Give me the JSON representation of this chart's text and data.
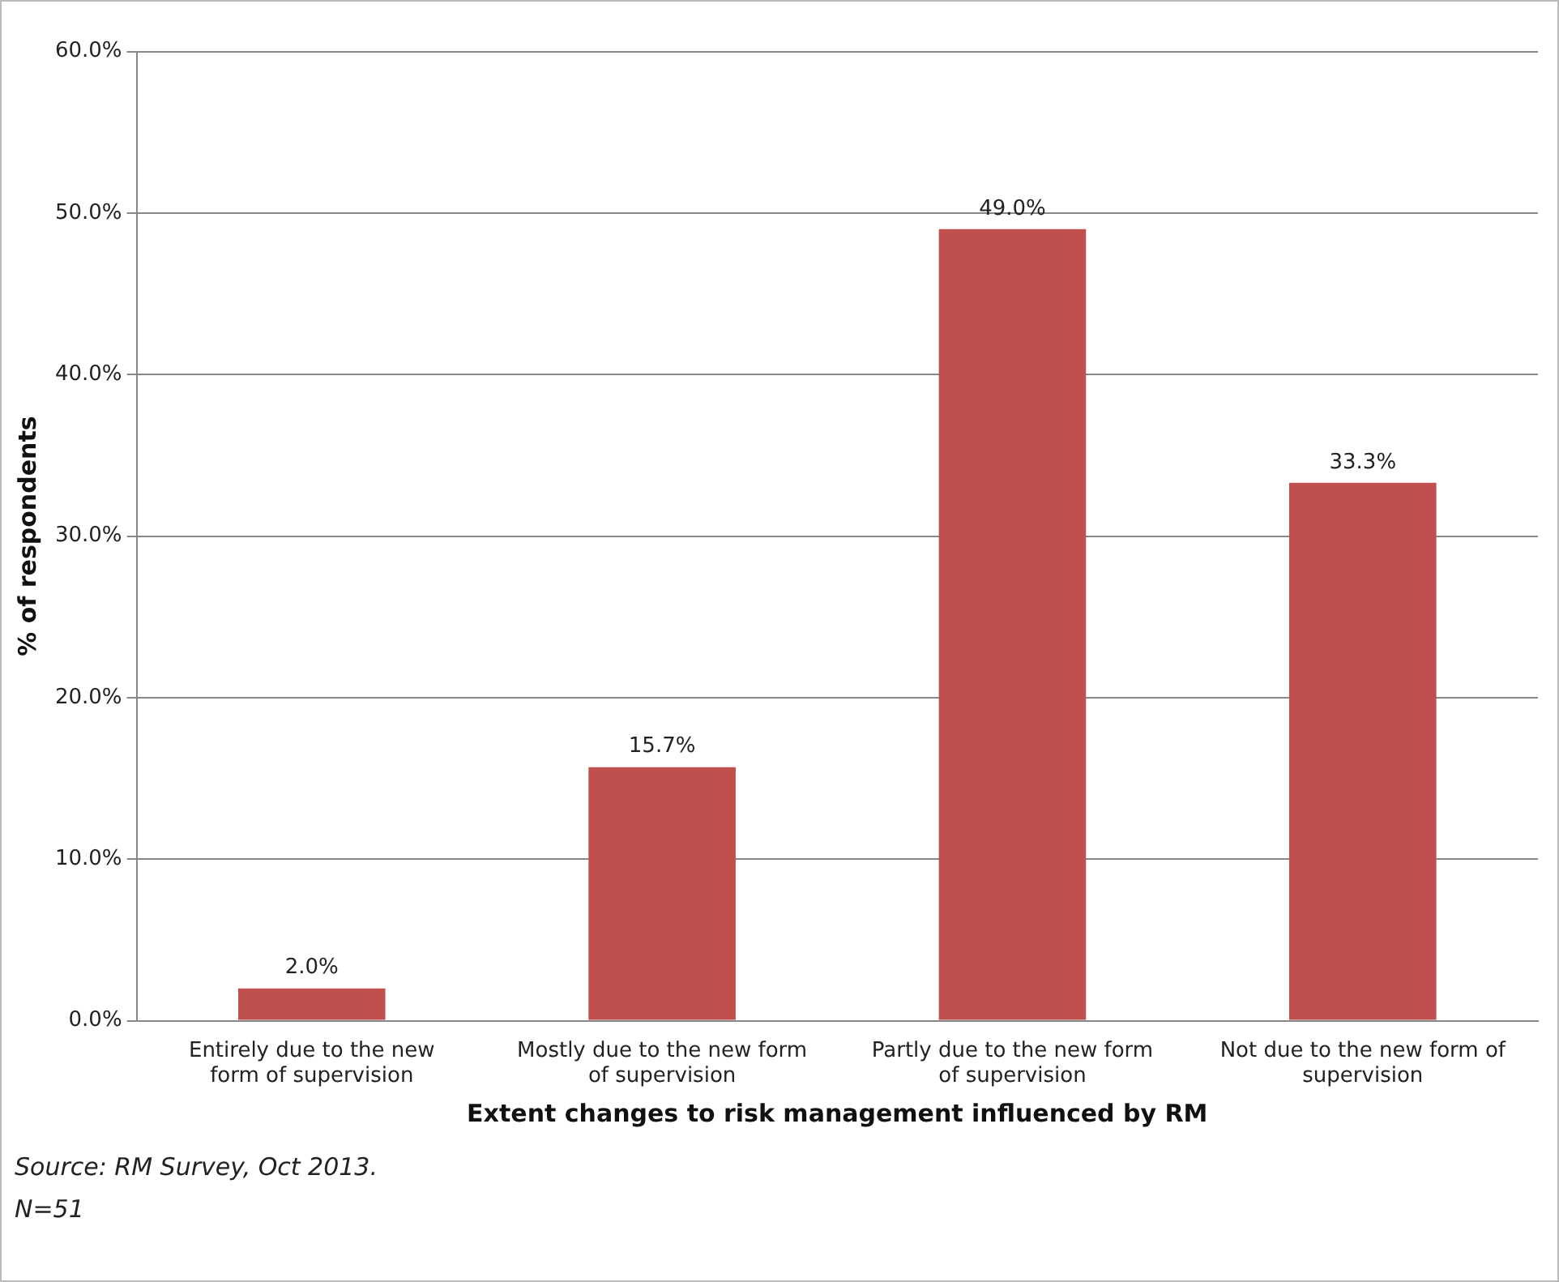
{
  "chart_data": {
    "type": "bar",
    "xlabel": "Extent changes to risk management influenced by RM",
    "ylabel": "% of respondents",
    "categories": [
      "Entirely due to the new form of supervision",
      "Mostly due to the new form of supervision",
      "Partly due to the new form of supervision",
      "Not due to the new form of supervision"
    ],
    "values": [
      2.0,
      15.7,
      49.0,
      33.3
    ],
    "color": "#c0504d",
    "value_labels": [
      "2.0%",
      "15.7%",
      "49.0%",
      "33.3%"
    ],
    "ylim": [
      0,
      60
    ],
    "yticks": [
      {
        "value": 0,
        "label": "0.0%"
      },
      {
        "value": 10,
        "label": "10.0%"
      },
      {
        "value": 20,
        "label": "20.0%"
      },
      {
        "value": 30,
        "label": "30.0%"
      },
      {
        "value": 40,
        "label": "40.0%"
      },
      {
        "value": 50,
        "label": "50.0%"
      },
      {
        "value": 60,
        "label": "60.0%"
      }
    ],
    "grid": "y",
    "legend": false,
    "annotations": [
      "Source: RM Survey, Oct 2013.",
      "N=51"
    ]
  }
}
